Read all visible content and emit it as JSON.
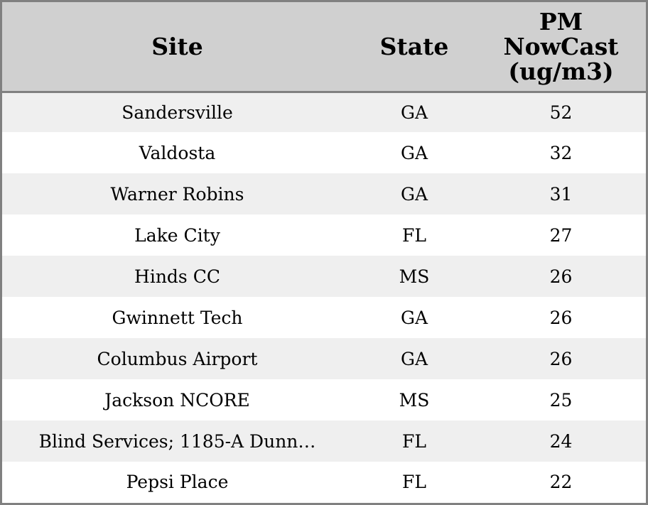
{
  "chart_data": {
    "type": "table",
    "columns": [
      "Site",
      "State",
      "PM NowCast (ug/m3)"
    ],
    "header": {
      "site": "Site",
      "state": "State",
      "pm_line1": "PM",
      "pm_line2": "NowCast",
      "pm_line3": "(ug/m3)"
    },
    "rows": [
      {
        "site": "Sandersville",
        "state": "GA",
        "pm": 52
      },
      {
        "site": "Valdosta",
        "state": "GA",
        "pm": 32
      },
      {
        "site": "Warner Robins",
        "state": "GA",
        "pm": 31
      },
      {
        "site": "Lake City",
        "state": "FL",
        "pm": 27
      },
      {
        "site": "Hinds CC",
        "state": "MS",
        "pm": 26
      },
      {
        "site": "Gwinnett Tech",
        "state": "GA",
        "pm": 26
      },
      {
        "site": "Columbus Airport",
        "state": "GA",
        "pm": 26
      },
      {
        "site": "Jackson NCORE",
        "state": "MS",
        "pm": 25
      },
      {
        "site": "Blind Services; 1185-A Dunn…",
        "state": "FL",
        "pm": 24
      },
      {
        "site": "Pepsi Place",
        "state": "FL",
        "pm": 22
      }
    ]
  },
  "colors": {
    "header_bg": "#d0d0d0",
    "stripe_bg": "#efefef",
    "row_bg": "#ffffff",
    "border": "#808080"
  }
}
